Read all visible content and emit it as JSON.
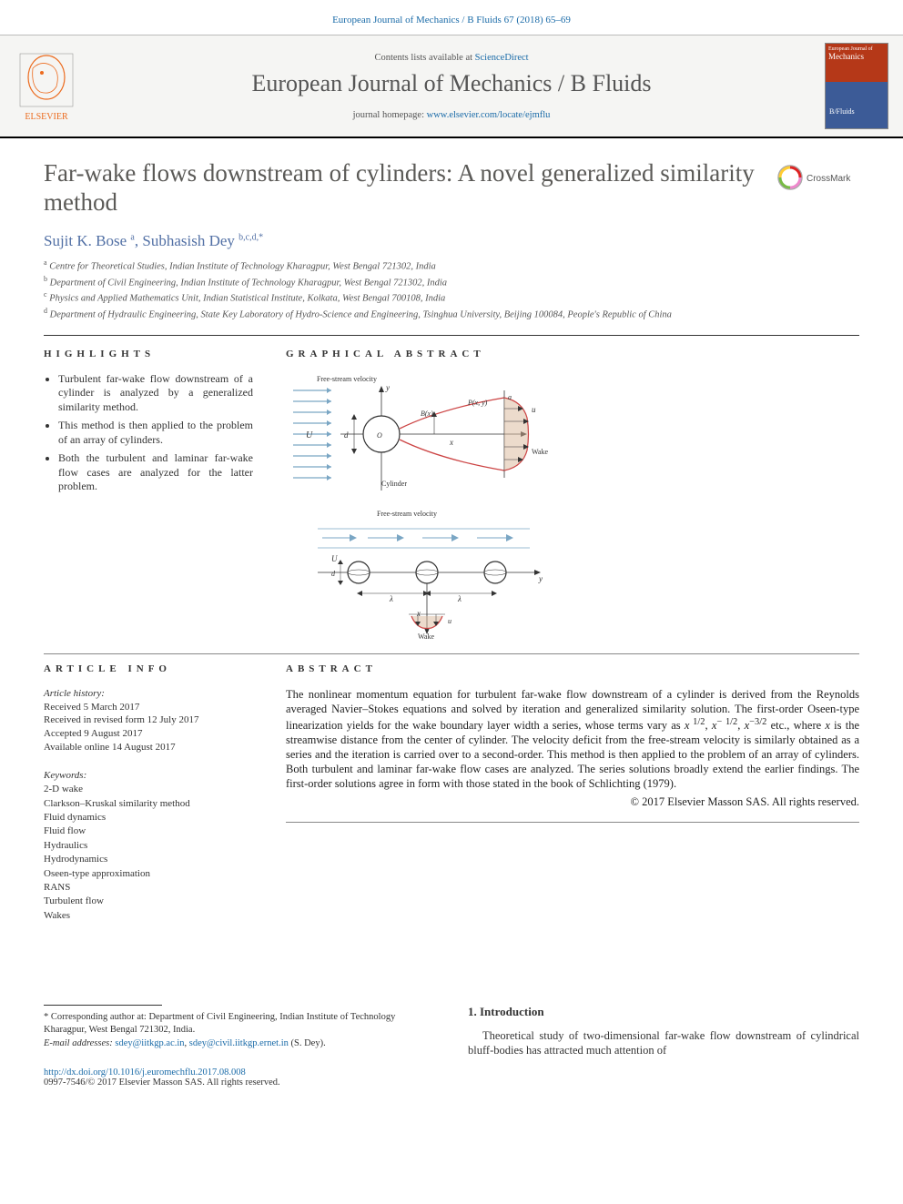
{
  "header": {
    "citation": "European Journal of Mechanics / B Fluids 67 (2018) 65–69",
    "contents_prefix": "Contents lists available at ",
    "contents_link": "ScienceDirect",
    "journal_name": "European Journal of Mechanics / B Fluids",
    "homepage_prefix": "journal homepage: ",
    "homepage_link": "www.elsevier.com/locate/ejmflu",
    "cover_top": "European Journal of",
    "cover_mid": "Mechanics",
    "cover_bot": "B/Fluids"
  },
  "title": "Far-wake flows downstream of cylinders: A novel generalized similarity method",
  "crossmark_label": "CrossMark",
  "authors_html": "Sujit K. Bose|a|, Subhasish Dey|b,c,d,*",
  "authors": [
    {
      "name": "Sujit K. Bose ",
      "sup": "a"
    },
    {
      "name": ", Subhasish Dey ",
      "sup": "b,c,d,",
      "corr": "*"
    }
  ],
  "affiliations": [
    {
      "sup": "a",
      "text": " Centre for Theoretical Studies, Indian Institute of Technology Kharagpur, West Bengal 721302, India"
    },
    {
      "sup": "b",
      "text": " Department of Civil Engineering, Indian Institute of Technology Kharagpur, West Bengal 721302, India"
    },
    {
      "sup": "c",
      "text": " Physics and Applied Mathematics Unit, Indian Statistical Institute, Kolkata, West Bengal 700108, India"
    },
    {
      "sup": "d",
      "text": " Department of Hydraulic Engineering, State Key Laboratory of Hydro-Science and Engineering, Tsinghua University, Beijing 100084, People's Republic of China"
    }
  ],
  "highlights": {
    "heading": "HIGHLIGHTS",
    "items": [
      "Turbulent far-wake flow downstream of a cylinder is analyzed by a generalized similarity method.",
      "This method is then applied to the problem of an array of cylinders.",
      "Both the turbulent and laminar far-wake flow cases are analyzed for the latter problem."
    ]
  },
  "graphical_abstract": {
    "heading": "GRAPHICAL ABSTRACT",
    "fig1": {
      "freestream_label": "Free-stream velocity",
      "U_label": "U",
      "d_label": "d",
      "O_label": "O",
      "Bx_label": "B(x)",
      "Pxy_label": "P(x, y)",
      "x_label": "x",
      "y_label": "y",
      "a_label": "a",
      "u_label": "u",
      "cylinder_label": "Cylinder",
      "wake_label": "Wake"
    },
    "fig2": {
      "freestream_label": "Free-stream velocity",
      "U_label": "U",
      "d_label": "d",
      "lambda_label": "λ",
      "x_label": "x",
      "y_label": "y",
      "u_label": "u",
      "wake_label": "Wake"
    },
    "colors": {
      "stream_line": "#7aa6c4",
      "cylinder_fill": "#ffffff",
      "cylinder_stroke": "#333333",
      "wake_line": "#c44",
      "wake_fill": "#d9b79a",
      "profile_line": "#c44",
      "axis_arrow": "#333333",
      "text": "#333333"
    }
  },
  "article_info": {
    "heading": "ARTICLE INFO",
    "history_label": "Article history:",
    "received": "Received 5 March 2017",
    "revised": "Received in revised form 12 July 2017",
    "accepted": "Accepted 9 August 2017",
    "online": "Available online 14 August 2017"
  },
  "keywords": {
    "label": "Keywords:",
    "items": [
      "2-D wake",
      "Clarkson–Kruskal similarity method",
      "Fluid dynamics",
      "Fluid flow",
      "Hydraulics",
      "Hydrodynamics",
      "Oseen-type approximation",
      "RANS",
      "Turbulent flow",
      "Wakes"
    ]
  },
  "abstract": {
    "heading": "ABSTRACT",
    "text": "The nonlinear momentum equation for turbulent far-wake flow downstream of a cylinder is derived from the Reynolds averaged Navier–Stokes equations and solved by iteration and generalized similarity solution. The first-order Oseen-type linearization yields for the wake boundary layer width a series, whose terms vary as x 1/2, x− 1/2, x−3/2 etc., where x is the streamwise distance from the center of cylinder. The velocity deficit from the free-stream velocity is similarly obtained as a series and the iteration is carried over to a second-order. This method is then applied to the problem of an array of cylinders. Both turbulent and laminar far-wake flow cases are analyzed. The series solutions broadly extend the earlier findings. The first-order solutions agree in form with those stated in the book of Schlichting (1979).",
    "copyright": "© 2017 Elsevier Masson SAS. All rights reserved."
  },
  "body": {
    "sec1_title": "1.  Introduction",
    "sec1_p1": "Theoretical study of two-dimensional far-wake flow downstream of cylindrical bluff-bodies has attracted much attention of"
  },
  "footnote": {
    "corr_label": "* ",
    "corr_text": "Corresponding author at: Department of Civil Engineering, Indian Institute of Technology Kharagpur, West Bengal 721302, India.",
    "email_label": "E-mail addresses: ",
    "email1": "sdey@iitkgp.ac.in",
    "email2": "sdey@civil.iitkgp.ernet.in",
    "email_suffix": " (S. Dey)."
  },
  "footer": {
    "doi": "http://dx.doi.org/10.1016/j.euromechflu.2017.08.008",
    "issn_line": "0997-7546/© 2017 Elsevier Masson SAS. All rights reserved."
  },
  "colors": {
    "link": "#1a6ba8",
    "author": "#5270a5",
    "title_gray": "#5b5a57",
    "elsevier_orange": "#ec6b1e",
    "cover_red": "#b53818",
    "cover_blue": "#3c5b97"
  }
}
